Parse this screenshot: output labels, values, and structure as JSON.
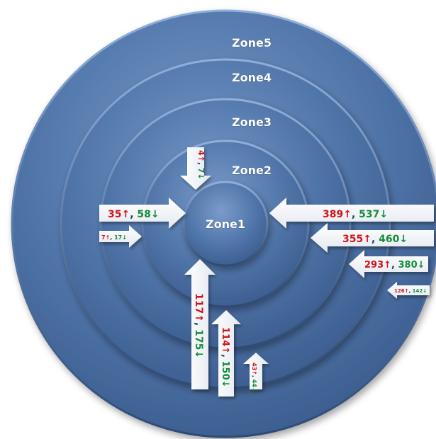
{
  "zones": {
    "zone1": "Zone1",
    "zone2": "Zone2",
    "zone3": "Zone3",
    "zone4": "Zone4",
    "zone5": "Zone5"
  },
  "colors": {
    "disk": "#4f74a8",
    "disk_light": "#6f93c4",
    "disk_dark": "#34537f",
    "arrow": "#ffffff",
    "up": "#d0121b",
    "down": "#138c3a"
  },
  "symbols": {
    "up": "↑",
    "down": "↓",
    "sep": ", "
  },
  "arrows": [
    {
      "id": "top",
      "up": "4",
      "down": "7"
    },
    {
      "id": "left-35",
      "up": "35",
      "down": "58"
    },
    {
      "id": "left-7",
      "up": "7",
      "down": "17"
    },
    {
      "id": "right-389",
      "up": "389",
      "down": "537"
    },
    {
      "id": "right-355",
      "up": "355",
      "down": "460"
    },
    {
      "id": "right-293",
      "up": "293",
      "down": "380"
    },
    {
      "id": "right-126",
      "up": "126",
      "down": "142"
    },
    {
      "id": "bottom-117",
      "up": "117",
      "down": "175"
    },
    {
      "id": "bottom-114",
      "up": "114",
      "down": "150"
    },
    {
      "id": "bottom-43",
      "up": "43",
      "down": "44"
    }
  ]
}
